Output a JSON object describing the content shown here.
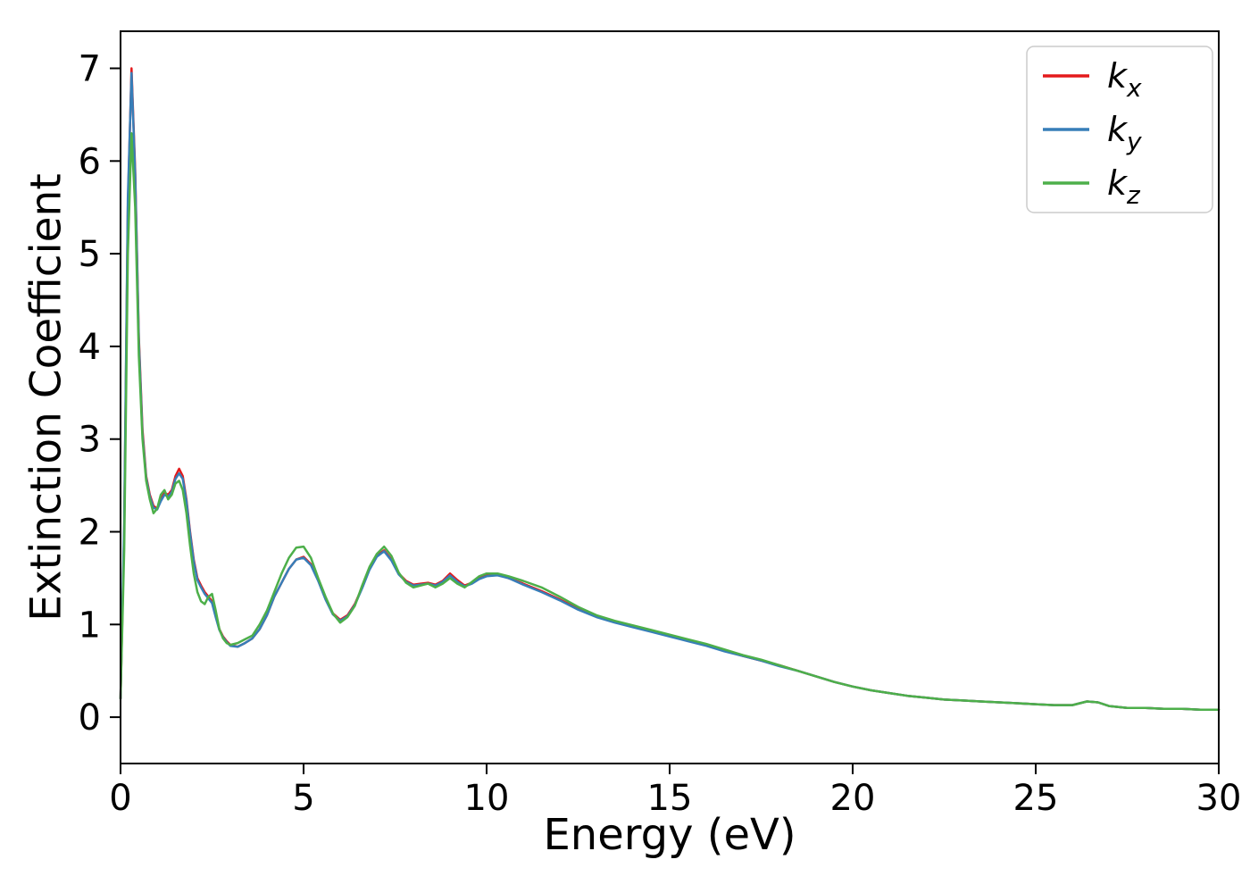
{
  "figure": {
    "background": "#ffffff",
    "axes_box_color": "#000000",
    "tick_color": "#000000"
  },
  "chart_data": {
    "type": "line",
    "title": "",
    "xlabel": "Energy (eV)",
    "ylabel": "Extinction Coefficient",
    "xlim": [
      0,
      30
    ],
    "ylim": [
      -0.5,
      7.4
    ],
    "xticks": [
      0,
      5,
      10,
      15,
      20,
      25,
      30
    ],
    "yticks": [
      0,
      1,
      2,
      3,
      4,
      5,
      6,
      7
    ],
    "grid": false,
    "legend": {
      "position": "upper right",
      "border_color": "#cccccc",
      "entries": [
        {
          "main": "k",
          "sub": "x",
          "color": "#e41a1c"
        },
        {
          "main": "k",
          "sub": "y",
          "color": "#377eb8"
        },
        {
          "main": "k",
          "sub": "z",
          "color": "#4daf4a"
        }
      ]
    },
    "x": [
      0,
      0.1,
      0.2,
      0.3,
      0.4,
      0.5,
      0.6,
      0.7,
      0.8,
      0.9,
      1,
      1.1,
      1.2,
      1.3,
      1.4,
      1.5,
      1.6,
      1.7,
      1.8,
      1.9,
      2,
      2.1,
      2.2,
      2.3,
      2.4,
      2.5,
      2.6,
      2.7,
      2.8,
      2.9,
      3,
      3.2,
      3.4,
      3.6,
      3.8,
      4,
      4.2,
      4.4,
      4.6,
      4.8,
      5,
      5.2,
      5.4,
      5.6,
      5.8,
      6,
      6.2,
      6.4,
      6.6,
      6.8,
      7,
      7.2,
      7.4,
      7.6,
      7.8,
      8,
      8.2,
      8.4,
      8.6,
      8.8,
      9,
      9.2,
      9.4,
      9.6,
      9.8,
      10,
      10.3,
      10.6,
      11,
      11.5,
      12,
      12.5,
      13,
      13.5,
      14,
      14.5,
      15,
      15.5,
      16,
      16.5,
      17,
      17.5,
      18,
      18.5,
      19,
      19.5,
      20,
      20.5,
      21,
      21.5,
      22,
      22.5,
      23,
      23.5,
      24,
      24.5,
      25,
      25.5,
      26,
      26.4,
      26.7,
      27,
      27.5,
      28,
      28.5,
      29,
      29.5,
      30
    ],
    "series": [
      {
        "name": "k_x",
        "color": "#e41a1c",
        "values": [
          0.2,
          2,
          5.5,
          7,
          5.9,
          4.1,
          3.1,
          2.6,
          2.4,
          2.28,
          2.25,
          2.35,
          2.42,
          2.4,
          2.45,
          2.6,
          2.68,
          2.6,
          2.35,
          2,
          1.7,
          1.5,
          1.42,
          1.35,
          1.3,
          1.25,
          1.1,
          0.95,
          0.87,
          0.82,
          0.78,
          0.76,
          0.8,
          0.85,
          0.95,
          1.1,
          1.3,
          1.45,
          1.6,
          1.7,
          1.73,
          1.65,
          1.48,
          1.28,
          1.12,
          1.05,
          1.1,
          1.22,
          1.4,
          1.6,
          1.74,
          1.8,
          1.7,
          1.55,
          1.47,
          1.43,
          1.44,
          1.45,
          1.43,
          1.47,
          1.55,
          1.48,
          1.42,
          1.45,
          1.5,
          1.53,
          1.54,
          1.5,
          1.44,
          1.36,
          1.27,
          1.17,
          1.09,
          1.03,
          0.98,
          0.93,
          0.88,
          0.83,
          0.78,
          0.72,
          0.66,
          0.61,
          0.56,
          0.5,
          0.44,
          0.38,
          0.33,
          0.29,
          0.26,
          0.23,
          0.21,
          0.19,
          0.18,
          0.17,
          0.16,
          0.15,
          0.14,
          0.13,
          0.13,
          0.17,
          0.16,
          0.12,
          0.1,
          0.1,
          0.09,
          0.09,
          0.08,
          0.08
        ]
      },
      {
        "name": "k_y",
        "color": "#377eb8",
        "values": [
          0.2,
          2.1,
          5.6,
          6.95,
          5.85,
          4.05,
          3.05,
          2.58,
          2.38,
          2.26,
          2.24,
          2.33,
          2.4,
          2.38,
          2.43,
          2.57,
          2.63,
          2.57,
          2.33,
          1.98,
          1.68,
          1.48,
          1.4,
          1.33,
          1.28,
          1.23,
          1.08,
          0.94,
          0.86,
          0.81,
          0.77,
          0.76,
          0.8,
          0.85,
          0.95,
          1.1,
          1.3,
          1.45,
          1.6,
          1.7,
          1.72,
          1.64,
          1.47,
          1.27,
          1.11,
          1.04,
          1.09,
          1.21,
          1.39,
          1.59,
          1.73,
          1.79,
          1.69,
          1.54,
          1.46,
          1.42,
          1.43,
          1.44,
          1.42,
          1.46,
          1.53,
          1.46,
          1.41,
          1.44,
          1.49,
          1.52,
          1.53,
          1.5,
          1.43,
          1.35,
          1.26,
          1.16,
          1.08,
          1.02,
          0.97,
          0.92,
          0.87,
          0.82,
          0.77,
          0.71,
          0.66,
          0.61,
          0.55,
          0.5,
          0.44,
          0.38,
          0.33,
          0.29,
          0.26,
          0.23,
          0.21,
          0.19,
          0.18,
          0.17,
          0.16,
          0.15,
          0.14,
          0.13,
          0.13,
          0.17,
          0.16,
          0.12,
          0.1,
          0.1,
          0.09,
          0.09,
          0.08,
          0.08
        ]
      },
      {
        "name": "k_z",
        "color": "#4daf4a",
        "values": [
          0.2,
          1.8,
          5,
          6.3,
          5.5,
          3.9,
          3,
          2.55,
          2.35,
          2.2,
          2.25,
          2.4,
          2.45,
          2.35,
          2.4,
          2.52,
          2.55,
          2.45,
          2.2,
          1.85,
          1.55,
          1.35,
          1.25,
          1.22,
          1.3,
          1.33,
          1.15,
          0.95,
          0.85,
          0.8,
          0.78,
          0.8,
          0.84,
          0.88,
          1,
          1.15,
          1.35,
          1.55,
          1.72,
          1.83,
          1.84,
          1.72,
          1.5,
          1.3,
          1.12,
          1.02,
          1.08,
          1.2,
          1.42,
          1.62,
          1.76,
          1.84,
          1.74,
          1.56,
          1.45,
          1.4,
          1.42,
          1.44,
          1.4,
          1.44,
          1.5,
          1.44,
          1.4,
          1.46,
          1.52,
          1.55,
          1.55,
          1.52,
          1.47,
          1.4,
          1.3,
          1.19,
          1.1,
          1.04,
          0.99,
          0.94,
          0.89,
          0.84,
          0.79,
          0.73,
          0.67,
          0.62,
          0.56,
          0.5,
          0.44,
          0.38,
          0.33,
          0.29,
          0.26,
          0.23,
          0.21,
          0.19,
          0.18,
          0.17,
          0.16,
          0.15,
          0.14,
          0.13,
          0.13,
          0.17,
          0.16,
          0.12,
          0.1,
          0.1,
          0.09,
          0.09,
          0.08,
          0.08
        ]
      }
    ]
  }
}
